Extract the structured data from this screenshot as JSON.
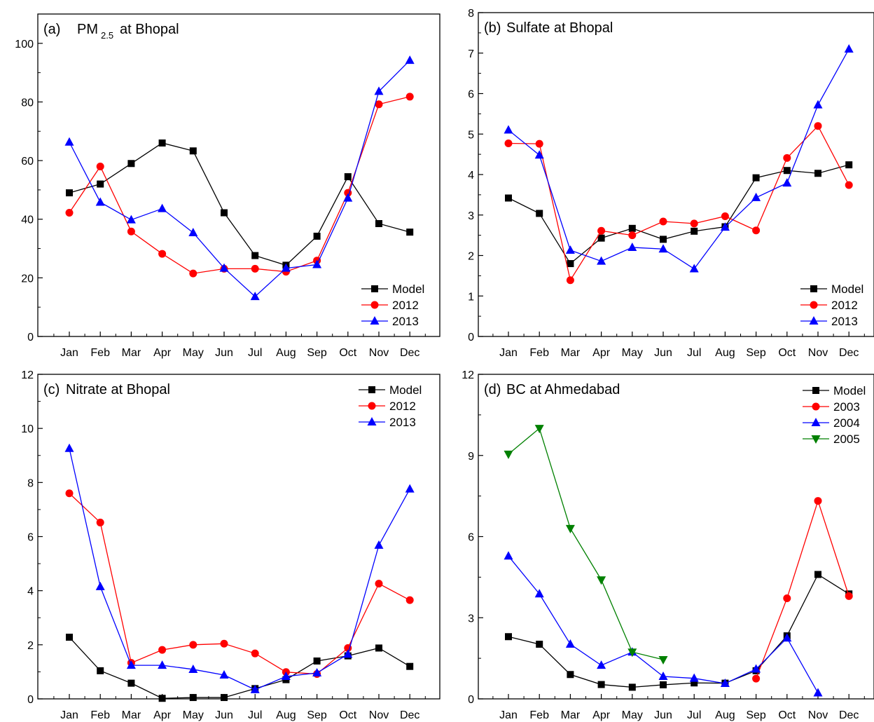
{
  "chart_data": [
    {
      "type": "line",
      "panel_label": "(a)",
      "title": "PM",
      "title_sub": "2.5",
      "title_rest": "at Bhopal",
      "categories": [
        "Jan",
        "Feb",
        "Mar",
        "Apr",
        "May",
        "Jun",
        "Jul",
        "Aug",
        "Sep",
        "Oct",
        "Nov",
        "Dec"
      ],
      "ylim": [
        0,
        110
      ],
      "yticks": [
        0,
        20,
        40,
        60,
        80,
        100
      ],
      "legend_position": "bottom-right",
      "series": [
        {
          "name": "Model",
          "color": "#000000",
          "marker": "square",
          "values": [
            49,
            52,
            59,
            66,
            63.3,
            42.2,
            27.6,
            24.3,
            34.2,
            54.5,
            38.5,
            35.6
          ]
        },
        {
          "name": "2012",
          "color": "#ff0000",
          "marker": "circle",
          "values": [
            42.2,
            58,
            35.8,
            28.2,
            21.5,
            23.1,
            23.1,
            22.1,
            25.9,
            49,
            79.2,
            81.8
          ]
        },
        {
          "name": "2013",
          "color": "#0000ff",
          "marker": "triangle",
          "values": [
            66.3,
            45.8,
            39.8,
            43.6,
            35.4,
            23.3,
            13.6,
            23.3,
            24.5,
            47.2,
            83.6,
            94.2
          ]
        }
      ]
    },
    {
      "type": "line",
      "panel_label": "(b)",
      "title": "Sulfate at Bhopal",
      "categories": [
        "Jan",
        "Feb",
        "Mar",
        "Apr",
        "May",
        "Jun",
        "Jul",
        "Aug",
        "Sep",
        "Oct",
        "Nov",
        "Dec"
      ],
      "ylim": [
        0,
        8
      ],
      "yticks": [
        0,
        1,
        2,
        3,
        4,
        5,
        6,
        7,
        8
      ],
      "legend_position": "bottom-right",
      "series": [
        {
          "name": "Model",
          "color": "#000000",
          "marker": "square",
          "values": [
            3.42,
            3.04,
            1.8,
            2.43,
            2.67,
            2.4,
            2.6,
            2.71,
            3.92,
            4.1,
            4.03,
            4.24
          ]
        },
        {
          "name": "2012",
          "color": "#ff0000",
          "marker": "circle",
          "values": [
            4.77,
            4.76,
            1.39,
            2.61,
            2.5,
            2.84,
            2.79,
            2.97,
            2.62,
            4.41,
            5.2,
            3.74
          ]
        },
        {
          "name": "2013",
          "color": "#0000ff",
          "marker": "triangle",
          "values": [
            5.1,
            4.48,
            2.13,
            1.86,
            2.2,
            2.16,
            1.67,
            2.7,
            3.43,
            3.79,
            5.72,
            7.1
          ]
        }
      ]
    },
    {
      "type": "line",
      "panel_label": "(c)",
      "title": "Nitrate at Bhopal",
      "categories": [
        "Jan",
        "Feb",
        "Mar",
        "Apr",
        "May",
        "Jun",
        "Jul",
        "Aug",
        "Sep",
        "Oct",
        "Nov",
        "Dec"
      ],
      "ylim": [
        0,
        12
      ],
      "yticks": [
        0,
        2,
        4,
        6,
        8,
        10,
        12
      ],
      "legend_position": "top-right",
      "series": [
        {
          "name": "Model",
          "color": "#000000",
          "marker": "square",
          "values": [
            2.28,
            1.04,
            0.58,
            0.02,
            0.05,
            0.05,
            0.38,
            0.71,
            1.4,
            1.59,
            1.88,
            1.2
          ]
        },
        {
          "name": "2012",
          "color": "#ff0000",
          "marker": "circle",
          "values": [
            7.6,
            6.52,
            1.33,
            1.81,
            2.0,
            2.04,
            1.68,
            0.99,
            0.92,
            1.88,
            4.26,
            3.65
          ]
        },
        {
          "name": "2013",
          "color": "#0000ff",
          "marker": "triangle",
          "values": [
            9.26,
            4.15,
            1.24,
            1.24,
            1.09,
            0.88,
            0.34,
            0.83,
            0.96,
            1.65,
            5.68,
            7.76
          ]
        }
      ]
    },
    {
      "type": "line",
      "panel_label": "(d)",
      "title": "BC at Ahmedabad",
      "categories": [
        "Jan",
        "Feb",
        "Mar",
        "Apr",
        "May",
        "Jun",
        "Jul",
        "Aug",
        "Sep",
        "Oct",
        "Nov",
        "Dec"
      ],
      "ylim": [
        0,
        12
      ],
      "yticks": [
        0,
        3,
        6,
        9,
        12
      ],
      "legend_position": "top-right",
      "series": [
        {
          "name": "Model",
          "color": "#000000",
          "marker": "square",
          "values": [
            2.3,
            2.02,
            0.9,
            0.53,
            0.43,
            0.52,
            0.59,
            0.58,
            1.04,
            2.33,
            4.6,
            3.88
          ]
        },
        {
          "name": "2003",
          "color": "#ff0000",
          "marker": "circle",
          "values": [
            null,
            null,
            null,
            null,
            null,
            null,
            null,
            null,
            0.75,
            3.72,
            7.32,
            3.8
          ]
        },
        {
          "name": "2004",
          "color": "#0000ff",
          "marker": "triangle",
          "values": [
            5.28,
            3.88,
            2.02,
            1.24,
            1.73,
            0.83,
            0.76,
            0.57,
            1.1,
            2.25,
            0.22,
            null
          ]
        },
        {
          "name": "2005",
          "color": "#008000",
          "marker": "triangle-down",
          "values": [
            9.05,
            10.0,
            6.3,
            4.4,
            1.73,
            1.45,
            null,
            null,
            null,
            null,
            null,
            null
          ]
        }
      ]
    }
  ]
}
